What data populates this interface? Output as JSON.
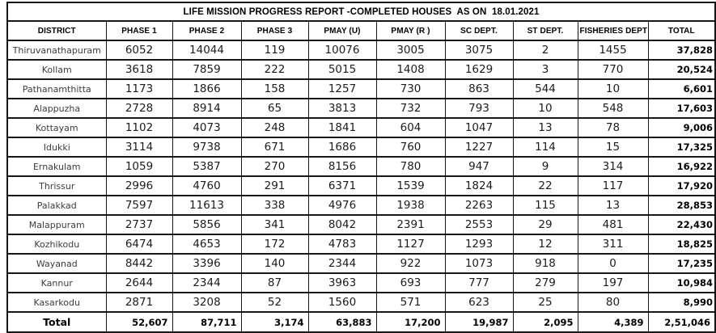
{
  "title": "LIFE MISSION PROGRESS REPORT -COMPLETED HOUSES  AS ON  18.01.2021",
  "colors": {
    "border": "#161616",
    "header_text": "#000000",
    "district_text": "#3c3c3c",
    "number_text": "#1c1c1c",
    "background": "#ffffff"
  },
  "table": {
    "columns": [
      "DISTRICT",
      "PHASE 1",
      "PHASE 2",
      "PHASE 3",
      "PMAY (U)",
      "PMAY (R )",
      "SC DEPT.",
      "ST DEPT.",
      "FISHERIES DEPT",
      "TOTAL"
    ],
    "rows": [
      {
        "district": "Thiruvanathapuram",
        "values": [
          "6052",
          "14044",
          "119",
          "10076",
          "3005",
          "3075",
          "2",
          "1455"
        ],
        "total": "37,828"
      },
      {
        "district": "Kollam",
        "values": [
          "3618",
          "7859",
          "222",
          "5015",
          "1408",
          "1629",
          "3",
          "770"
        ],
        "total": "20,524"
      },
      {
        "district": "Pathanamthitta",
        "values": [
          "1173",
          "1866",
          "158",
          "1257",
          "730",
          "863",
          "544",
          "10"
        ],
        "total": "6,601"
      },
      {
        "district": "Alappuzha",
        "values": [
          "2728",
          "8914",
          "65",
          "3813",
          "732",
          "793",
          "10",
          "548"
        ],
        "total": "17,603"
      },
      {
        "district": "Kottayam",
        "values": [
          "1102",
          "4073",
          "248",
          "1841",
          "604",
          "1047",
          "13",
          "78"
        ],
        "total": "9,006"
      },
      {
        "district": "Idukki",
        "values": [
          "3114",
          "9738",
          "671",
          "1686",
          "760",
          "1227",
          "114",
          "15"
        ],
        "total": "17,325"
      },
      {
        "district": "Ernakulam",
        "values": [
          "1059",
          "5387",
          "270",
          "8156",
          "780",
          "947",
          "9",
          "314"
        ],
        "total": "16,922"
      },
      {
        "district": "Thrissur",
        "values": [
          "2996",
          "4760",
          "291",
          "6371",
          "1539",
          "1824",
          "22",
          "117"
        ],
        "total": "17,920"
      },
      {
        "district": "Palakkad",
        "values": [
          "7597",
          "11613",
          "338",
          "4976",
          "1938",
          "2263",
          "115",
          "13"
        ],
        "total": "28,853"
      },
      {
        "district": "Malappuram",
        "values": [
          "2737",
          "5856",
          "341",
          "8042",
          "2391",
          "2553",
          "29",
          "481"
        ],
        "total": "22,430"
      },
      {
        "district": "Kozhikodu",
        "values": [
          "6474",
          "4653",
          "172",
          "4783",
          "1127",
          "1293",
          "12",
          "311"
        ],
        "total": "18,825"
      },
      {
        "district": "Wayanad",
        "values": [
          "8442",
          "3396",
          "140",
          "2344",
          "922",
          "1073",
          "918",
          "0"
        ],
        "total": "17,235"
      },
      {
        "district": "Kannur",
        "values": [
          "2644",
          "2344",
          "87",
          "3963",
          "693",
          "777",
          "279",
          "197"
        ],
        "total": "10,984"
      },
      {
        "district": "Kasarkodu",
        "values": [
          "2871",
          "3208",
          "52",
          "1560",
          "571",
          "623",
          "25",
          "80"
        ],
        "total": "8,990"
      }
    ],
    "total_row": {
      "label": "Total",
      "values": [
        "52,607",
        "87,711",
        "3,174",
        "63,883",
        "17,200",
        "19,987",
        "2,095",
        "4,389"
      ],
      "total": "2,51,046"
    }
  }
}
